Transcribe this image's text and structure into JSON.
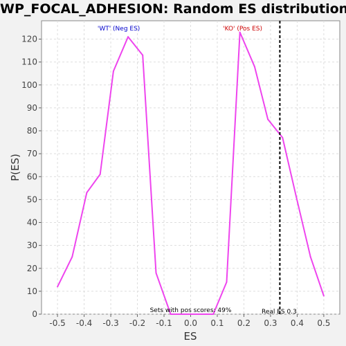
{
  "chart_data": {
    "type": "line",
    "title": "WP_FOCAL_ADHESION: Random ES distribution",
    "xlabel": "ES",
    "ylabel": "P(ES)",
    "xlim": [
      -0.56,
      0.56
    ],
    "ylim": [
      0,
      128
    ],
    "x_ticks": [
      -0.5,
      -0.4,
      -0.3,
      -0.2,
      -0.1,
      0.0,
      0.1,
      0.2,
      0.3,
      0.4,
      0.5
    ],
    "x_tick_labels": [
      "-0.5",
      "-0.4",
      "-0.3",
      "-0.2",
      "-0.1",
      "0.0",
      "0.1",
      "0.2",
      "0.3",
      "0.4",
      "0.5"
    ],
    "y_ticks": [
      0,
      10,
      20,
      30,
      40,
      50,
      60,
      70,
      80,
      90,
      100,
      110,
      120
    ],
    "y_tick_labels": [
      "0",
      "10",
      "20",
      "30",
      "40",
      "50",
      "60",
      "70",
      "80",
      "90",
      "100",
      "110",
      "120"
    ],
    "grid": true,
    "series": [
      {
        "color": "#ee44ee",
        "x": [
          -0.5,
          -0.445,
          -0.39,
          -0.34,
          -0.29,
          -0.235,
          -0.18,
          -0.13,
          -0.075,
          -0.02,
          0.03,
          0.085,
          0.135,
          0.185,
          0.24,
          0.29,
          0.345,
          0.395,
          0.45,
          0.5
        ],
        "y": [
          12,
          25,
          53,
          61,
          106,
          121,
          113,
          18,
          0,
          0,
          0,
          0,
          14,
          123,
          108,
          85,
          77,
          52,
          25,
          8
        ]
      }
    ],
    "annotations": {
      "neg_label": "'WT' (Neg ES)",
      "neg_color": "#0000cc",
      "pos_label": "'KO' (Pos ES)",
      "pos_color": "#cc0000",
      "sets_text": "Sets with pos scores: 49%",
      "real_es_text": "Real ES 0.3",
      "real_es_value": 0.335
    }
  }
}
